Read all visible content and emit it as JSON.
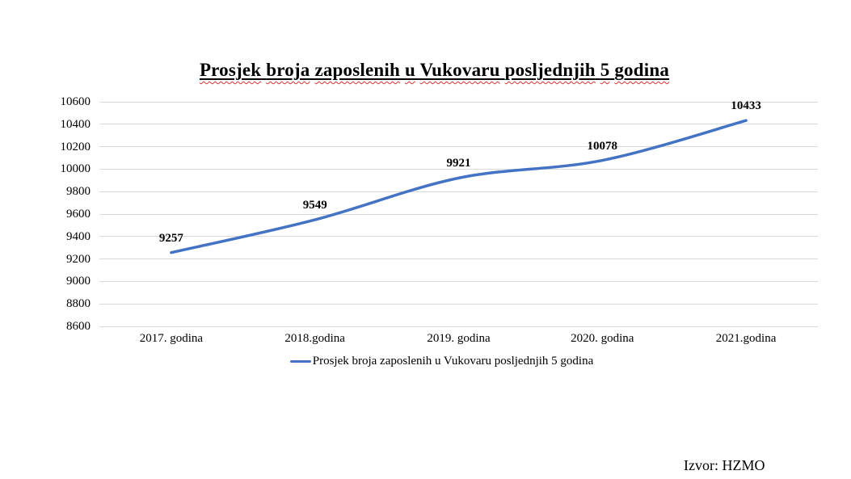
{
  "title": {
    "text": "Prosjek broja zaposlenih u Vukovaru posljednjih 5 godina"
  },
  "chart_data": {
    "type": "line",
    "title": "Prosjek broja zaposlenih u Vukovaru posljednjih 5 godina",
    "categories": [
      "2017. godina",
      "2018.godina",
      "2019. godina",
      "2020. godina",
      "2021.godina"
    ],
    "series": [
      {
        "name": "Prosjek broja zaposlenih u Vukovaru posljednjih 5 godina",
        "values": [
          9257,
          9549,
          9921,
          10078,
          10433
        ],
        "color": "#4472C4"
      }
    ],
    "xlabel": "",
    "ylabel": "",
    "ylim": [
      8600,
      10600
    ],
    "y_tick_step": 200,
    "grid": true,
    "gridline_color": "#d9d9d9",
    "smooth": true,
    "data_labels": true,
    "legend_position": "bottom"
  },
  "legend": {
    "label": "Prosjek broja zaposlenih u Vukovaru posljednjih 5 godina",
    "marker_color": "#4472C4"
  },
  "source": {
    "text": "Izvor: HZMO"
  }
}
